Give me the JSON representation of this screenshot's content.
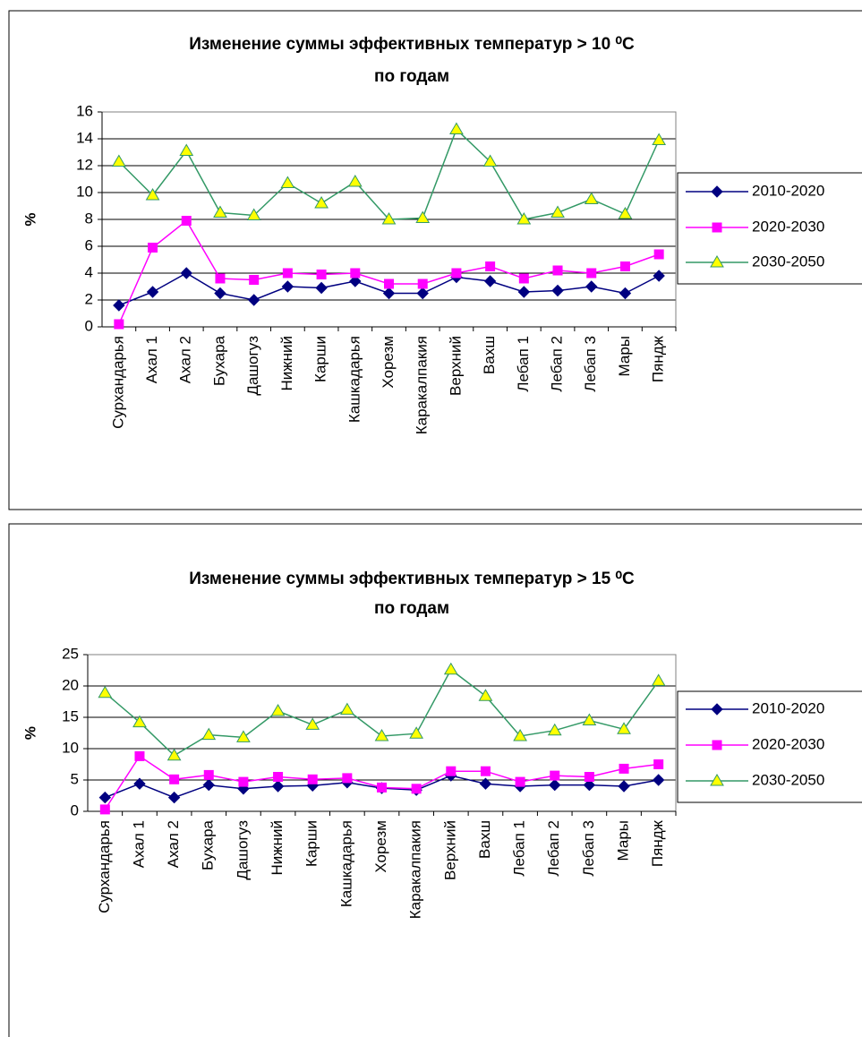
{
  "chart_data": [
    {
      "type": "line",
      "title": "Изменение суммы эффективных температур > 10 ⁰C",
      "subtitle": "по годам",
      "y_label": "%",
      "categories": [
        "Сурхандарья",
        "Ахал 1",
        "Ахал 2",
        "Бухара",
        "Дашогуз",
        "Нижний",
        "Карши",
        "Кашкадарья",
        "Хорезм",
        "Каракалпакия",
        "Верхний",
        "Вахш",
        "Лебап 1",
        "Лебап 2",
        "Лебап 3",
        "Мары",
        "Пяндж"
      ],
      "series": [
        {
          "name": "2010-2020",
          "color": "#000080",
          "marker": "diamond",
          "values": [
            1.6,
            2.6,
            4.0,
            2.5,
            2.0,
            3.0,
            2.9,
            3.4,
            2.5,
            2.5,
            3.7,
            3.4,
            2.6,
            2.7,
            3.0,
            2.5,
            3.8
          ]
        },
        {
          "name": "2020-2030",
          "color": "#ff00ff",
          "marker": "square",
          "values": [
            0.2,
            5.9,
            7.9,
            3.6,
            3.5,
            4.0,
            3.9,
            4.0,
            3.2,
            3.2,
            4.0,
            4.5,
            3.6,
            4.2,
            4.0,
            4.5,
            5.4
          ]
        },
        {
          "name": "2030-2050",
          "color": "#339966",
          "marker": "triangle",
          "values": [
            12.3,
            9.8,
            13.1,
            8.5,
            8.3,
            10.7,
            9.2,
            10.8,
            8.0,
            8.1,
            14.7,
            12.3,
            8.0,
            8.5,
            9.5,
            8.4,
            13.9
          ]
        }
      ],
      "ylim": [
        0,
        16
      ],
      "yticks": [
        0,
        2,
        4,
        6,
        8,
        10,
        12,
        14,
        16
      ],
      "grid": true,
      "legend": "right"
    },
    {
      "type": "line",
      "title": "Изменение суммы эффективных температур > 15 ⁰C",
      "subtitle": "по годам",
      "y_label": "%",
      "categories": [
        "Сурхандарья",
        "Ахал 1",
        "Ахал 2",
        "Бухара",
        "Дашогуз",
        "Нижний",
        "Карши",
        "Кашкадарья",
        "Хорезм",
        "Каракалпакия",
        "Верхний",
        "Вахш",
        "Лебап 1",
        "Лебап 2",
        "Лебап 3",
        "Мары",
        "Пяндж"
      ],
      "series": [
        {
          "name": "2010-2020",
          "color": "#000080",
          "marker": "diamond",
          "values": [
            2.2,
            4.4,
            2.2,
            4.2,
            3.6,
            4.0,
            4.1,
            4.6,
            3.7,
            3.4,
            5.7,
            4.4,
            4.0,
            4.2,
            4.2,
            4.0,
            5.0
          ]
        },
        {
          "name": "2020-2030",
          "color": "#ff00ff",
          "marker": "square",
          "values": [
            0.3,
            8.8,
            5.1,
            5.8,
            4.7,
            5.5,
            5.1,
            5.3,
            3.8,
            3.6,
            6.4,
            6.4,
            4.7,
            5.7,
            5.5,
            6.8,
            7.5
          ]
        },
        {
          "name": "2030-2050",
          "color": "#339966",
          "marker": "triangle",
          "values": [
            18.9,
            14.2,
            8.9,
            12.2,
            11.8,
            16.0,
            13.8,
            16.2,
            12.0,
            12.4,
            22.6,
            18.4,
            12.0,
            12.9,
            14.5,
            13.1,
            20.8
          ]
        }
      ],
      "ylim": [
        0,
        25
      ],
      "yticks": [
        0,
        5,
        10,
        15,
        20,
        25
      ],
      "grid": true,
      "legend": "right"
    }
  ]
}
